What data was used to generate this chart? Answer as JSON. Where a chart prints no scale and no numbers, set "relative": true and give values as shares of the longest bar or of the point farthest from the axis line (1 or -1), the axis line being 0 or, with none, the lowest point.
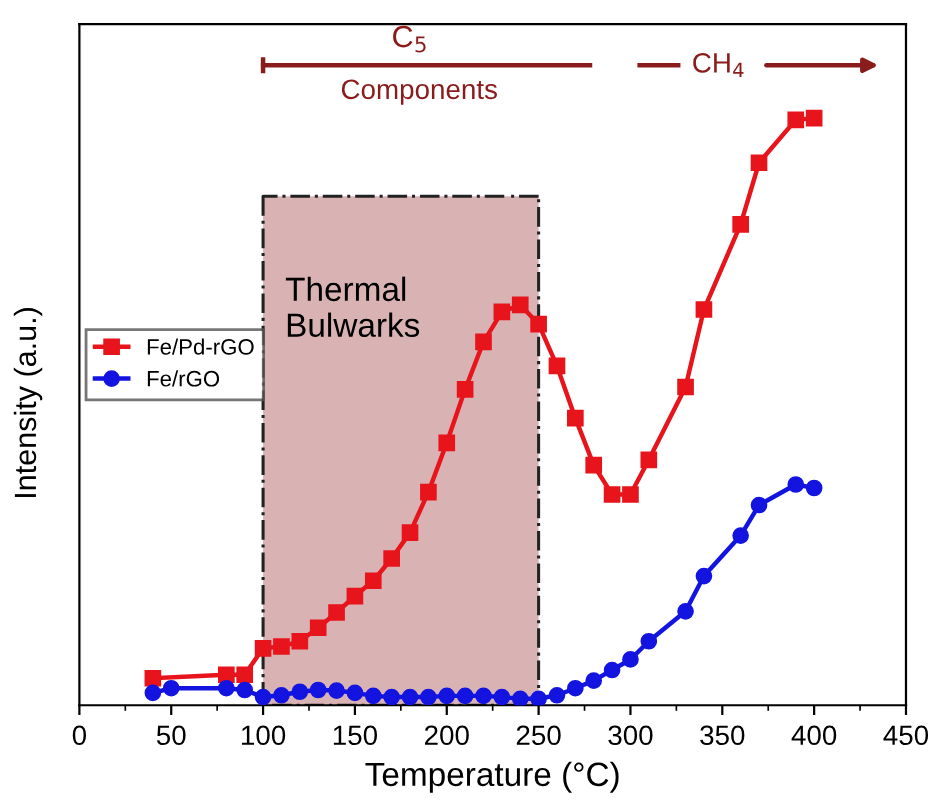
{
  "chart_data": {
    "type": "line",
    "relative": true,
    "xlabel": "Temperature (°C)",
    "ylabel": "Intensity (a.u.)",
    "xlim": [
      0,
      450
    ],
    "xticks": [
      0,
      50,
      100,
      150,
      200,
      250,
      300,
      350,
      400,
      450
    ],
    "grid": false,
    "legend": "left",
    "series": [
      {
        "name": "Fe/Pd-rGO",
        "color": "#e8141c",
        "marker": "square",
        "x": [
          40,
          80,
          90,
          100,
          110,
          120,
          130,
          140,
          150,
          160,
          170,
          180,
          190,
          200,
          210,
          220,
          230,
          240,
          250,
          260,
          270,
          280,
          290,
          300,
          310,
          330,
          340,
          360,
          370,
          390,
          400
        ],
        "values": [
          0.046,
          0.052,
          0.052,
          0.097,
          0.1,
          0.109,
          0.132,
          0.158,
          0.186,
          0.212,
          0.25,
          0.294,
          0.363,
          0.447,
          0.538,
          0.619,
          0.67,
          0.682,
          0.649,
          0.578,
          0.489,
          0.409,
          0.359,
          0.359,
          0.418,
          0.542,
          0.674,
          0.819,
          0.924,
          0.997,
          1
        ]
      },
      {
        "name": "Fe/rGO",
        "color": "#1414e0",
        "marker": "circle",
        "x": [
          40,
          50,
          80,
          90,
          100,
          110,
          120,
          130,
          140,
          150,
          160,
          170,
          180,
          190,
          200,
          210,
          220,
          230,
          240,
          250,
          260,
          270,
          280,
          290,
          300,
          310,
          330,
          340,
          360,
          370,
          390,
          400
        ],
        "values": [
          0.021,
          0.029,
          0.029,
          0.026,
          0.014,
          0.017,
          0.023,
          0.026,
          0.025,
          0.021,
          0.016,
          0.014,
          0.014,
          0.014,
          0.016,
          0.016,
          0.016,
          0.014,
          0.011,
          0.011,
          0.017,
          0.029,
          0.042,
          0.06,
          0.078,
          0.109,
          0.16,
          0.22,
          0.289,
          0.341,
          0.376,
          0.37
        ]
      }
    ],
    "bands": [
      {
        "axis": "x",
        "from": 100,
        "to": 250,
        "label": "Thermal\nBulwarks",
        "color": "#d9b3b3"
      }
    ],
    "annotations": [
      "C$_{5}$",
      "Components",
      "CH$_{4}$"
    ]
  }
}
